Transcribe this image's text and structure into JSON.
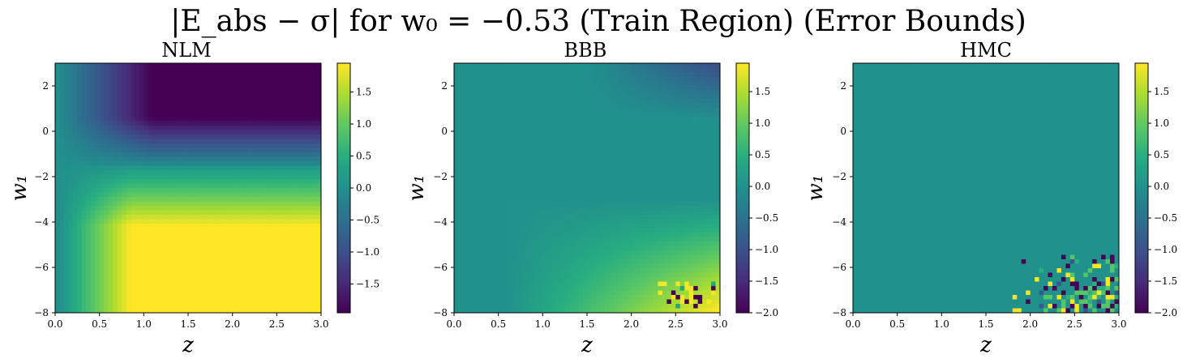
{
  "figure": {
    "suptitle": "|E_abs − σ| for w₀ = −0.53 (Train Region) (Error Bounds)"
  },
  "chart_data": [
    {
      "type": "heatmap",
      "title": "NLM",
      "xlabel": "z",
      "ylabel": "w₁",
      "xlim": [
        0.0,
        3.0
      ],
      "ylim": [
        -8,
        3
      ],
      "xticks": [
        "0.0",
        "0.5",
        "1.0",
        "1.5",
        "2.0",
        "2.5",
        "3.0"
      ],
      "yticks": [
        "2",
        "0",
        "−2",
        "−4",
        "−6",
        "−8"
      ],
      "colorbar": {
        "min": -1.95,
        "max": 1.95,
        "ticks": [
          "1.5",
          "1.0",
          "0.5",
          "0.0",
          "−0.5",
          "−1.0",
          "−1.5"
        ],
        "colormap": "viridis"
      },
      "description_values": "top-right region ≈ −1.9 (dark purple), lower-right region ≈ +1.9 (yellow), left edge ≈ 0.0 (teal)"
    },
    {
      "type": "heatmap",
      "title": "BBB",
      "xlabel": "z",
      "ylabel": "w₁",
      "xlim": [
        0.0,
        3.0
      ],
      "ylim": [
        -8,
        3
      ],
      "xticks": [
        "0.0",
        "0.5",
        "1.0",
        "1.5",
        "2.0",
        "2.5",
        "3.0"
      ],
      "yticks": [
        "2",
        "0",
        "−2",
        "−4",
        "−6",
        "−8"
      ],
      "colorbar": {
        "min": -2.0,
        "max": 1.95,
        "ticks": [
          "1.5",
          "1.0",
          "0.5",
          "0.0",
          "−0.5",
          "−1.0",
          "−1.5",
          "−2.0"
        ],
        "colormap": "viridis"
      },
      "description_values": "mostly ≈ 0.0, top-right ≈ −0.7, bottom-right ≈ +1.5 with noisy pixels near z≈2.8, w₁≈−7.5"
    },
    {
      "type": "heatmap",
      "title": "HMC",
      "xlabel": "z",
      "ylabel": "w₁",
      "xlim": [
        0.0,
        3.0
      ],
      "ylim": [
        -8,
        3
      ],
      "xticks": [
        "0.0",
        "0.5",
        "1.0",
        "1.5",
        "2.0",
        "2.5",
        "3.0"
      ],
      "yticks": [
        "2",
        "0",
        "−2",
        "−4",
        "−6",
        "−8"
      ],
      "colorbar": {
        "min": -2.0,
        "max": 1.95,
        "ticks": [
          "1.5",
          "1.0",
          "0.5",
          "0.0",
          "−0.5",
          "−1.0",
          "−1.5",
          "−2.0"
        ],
        "colormap": "viridis"
      },
      "description_values": "uniform ≈ 0.0 everywhere except noisy region z > 1.8, w₁ < −4.5 with values between −2.0 and +1.9"
    }
  ]
}
